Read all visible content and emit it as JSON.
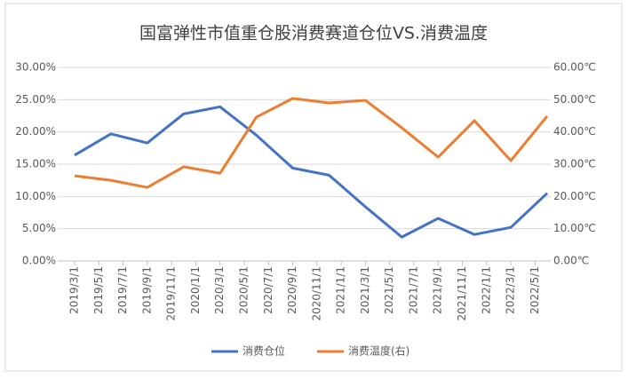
{
  "chart_data": {
    "type": "line",
    "title": "国富弹性市值重仓股消费赛道仓位VS.消费温度",
    "x": [
      "2019/3/1",
      "2019/6/1",
      "2019/9/1",
      "2019/12/1",
      "2020/3/1",
      "2020/6/1",
      "2020/9/1",
      "2020/12/1",
      "2021/3/1",
      "2021/6/1",
      "2021/9/1",
      "2021/12/1",
      "2022/3/1",
      "2022/6/1"
    ],
    "xlim": [
      "2019/3/1",
      "2022/6/1"
    ],
    "xticks": [
      "2019/3/1",
      "2019/5/1",
      "2019/7/1",
      "2019/9/1",
      "2019/11/1",
      "2020/1/1",
      "2020/3/1",
      "2020/5/1",
      "2020/7/1",
      "2020/9/1",
      "2020/11/1",
      "2021/1/1",
      "2021/3/1",
      "2021/5/1",
      "2021/7/1",
      "2021/9/1",
      "2021/11/1",
      "2022/1/1",
      "2022/3/1",
      "2022/5/1"
    ],
    "ylim": [
      0,
      30
    ],
    "yticks": [
      {
        "value": 0,
        "label": "0.00%"
      },
      {
        "value": 5,
        "label": "5.00%"
      },
      {
        "value": 10,
        "label": "10.00%"
      },
      {
        "value": 15,
        "label": "15.00%"
      },
      {
        "value": 20,
        "label": "20.00%"
      },
      {
        "value": 25,
        "label": "25.00%"
      },
      {
        "value": 30,
        "label": "30.00%"
      }
    ],
    "y2lim": [
      0,
      60
    ],
    "y2ticks": [
      {
        "value": 0,
        "label": "0.00℃"
      },
      {
        "value": 10,
        "label": "10.00℃"
      },
      {
        "value": 20,
        "label": "20.00℃"
      },
      {
        "value": 30,
        "label": "30.00℃"
      },
      {
        "value": 40,
        "label": "40.00℃"
      },
      {
        "value": 50,
        "label": "50.00℃"
      },
      {
        "value": 60,
        "label": "60.00℃"
      }
    ],
    "grid": true,
    "legend": "bottom",
    "series": [
      {
        "name": "消费仓位",
        "color": "#4472c4",
        "values": [
          16.4,
          19.7,
          18.3,
          22.8,
          23.9,
          19.5,
          14.4,
          13.3,
          8.4,
          3.7,
          6.6,
          4.1,
          5.2,
          10.5
        ]
      },
      {
        "name": "消费温度(右)",
        "color": "#ed7d31",
        "axis": "y2",
        "values": [
          26.4,
          25.0,
          22.8,
          29.2,
          27.2,
          44.6,
          50.4,
          49.0,
          49.8,
          41.3,
          32.2,
          43.5,
          31.1,
          44.9
        ]
      }
    ]
  }
}
